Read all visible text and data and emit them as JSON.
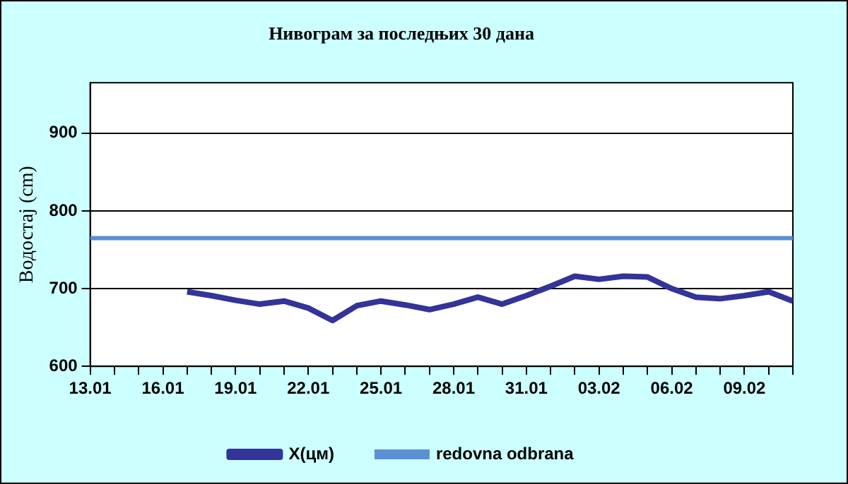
{
  "chart_data": {
    "type": "line",
    "title": "Нивограм за последњих 30 дана",
    "ylabel": "Водостај (cm)",
    "x": [
      "--01-17",
      "--01-18",
      "--01-19",
      "--01-20",
      "--01-21",
      "--01-22",
      "--01-23",
      "--01-24",
      "--01-25",
      "--01-26",
      "--01-27",
      "--01-28",
      "--01-29",
      "--01-30",
      "--01-31",
      "--02-01",
      "--02-02",
      "--02-03",
      "--02-04",
      "--02-05",
      "--02-06",
      "--02-07",
      "--02-08",
      "--02-09",
      "--02-10",
      "--02-11"
    ],
    "series": [
      {
        "name": "X(цм)",
        "color": "#333399",
        "values": [
          696,
          691,
          685,
          680,
          684,
          675,
          659,
          678,
          684,
          679,
          673,
          680,
          689,
          680,
          691,
          703,
          716,
          712,
          716,
          715,
          700,
          689,
          687,
          691,
          696,
          684
        ]
      }
    ],
    "ref_lines": [
      {
        "axis": "y",
        "value": 765,
        "label": "redovna odbrana",
        "color": "#5b8fd6"
      }
    ],
    "xlim": [
      "--01-13",
      "--02-11"
    ],
    "xticks": [
      {
        "value": "--01-13",
        "label": "13.01"
      },
      {
        "value": "--01-14",
        "label": null
      },
      {
        "value": "--01-15",
        "label": null
      },
      {
        "value": "--01-16",
        "label": "16.01"
      },
      {
        "value": "--01-17",
        "label": null
      },
      {
        "value": "--01-18",
        "label": null
      },
      {
        "value": "--01-19",
        "label": "19.01"
      },
      {
        "value": "--01-20",
        "label": null
      },
      {
        "value": "--01-21",
        "label": null
      },
      {
        "value": "--01-22",
        "label": "22.01"
      },
      {
        "value": "--01-23",
        "label": null
      },
      {
        "value": "--01-24",
        "label": null
      },
      {
        "value": "--01-25",
        "label": "25.01"
      },
      {
        "value": "--01-26",
        "label": null
      },
      {
        "value": "--01-27",
        "label": null
      },
      {
        "value": "--01-28",
        "label": "28.01"
      },
      {
        "value": "--01-29",
        "label": null
      },
      {
        "value": "--01-30",
        "label": null
      },
      {
        "value": "--01-31",
        "label": "31.01"
      },
      {
        "value": "--02-01",
        "label": null
      },
      {
        "value": "--02-02",
        "label": null
      },
      {
        "value": "--02-03",
        "label": "03.02"
      },
      {
        "value": "--02-04",
        "label": null
      },
      {
        "value": "--02-05",
        "label": null
      },
      {
        "value": "--02-06",
        "label": "06.02"
      },
      {
        "value": "--02-07",
        "label": null
      },
      {
        "value": "--02-08",
        "label": null
      },
      {
        "value": "--02-09",
        "label": "09.02"
      },
      {
        "value": "--02-10",
        "label": null
      },
      {
        "value": "--02-11",
        "label": null
      }
    ],
    "ylim": [
      600,
      965
    ],
    "yticks": [
      600,
      700,
      800,
      900
    ],
    "grid": "y",
    "legend": "bottom",
    "marker": "none",
    "line_style": "solid"
  }
}
